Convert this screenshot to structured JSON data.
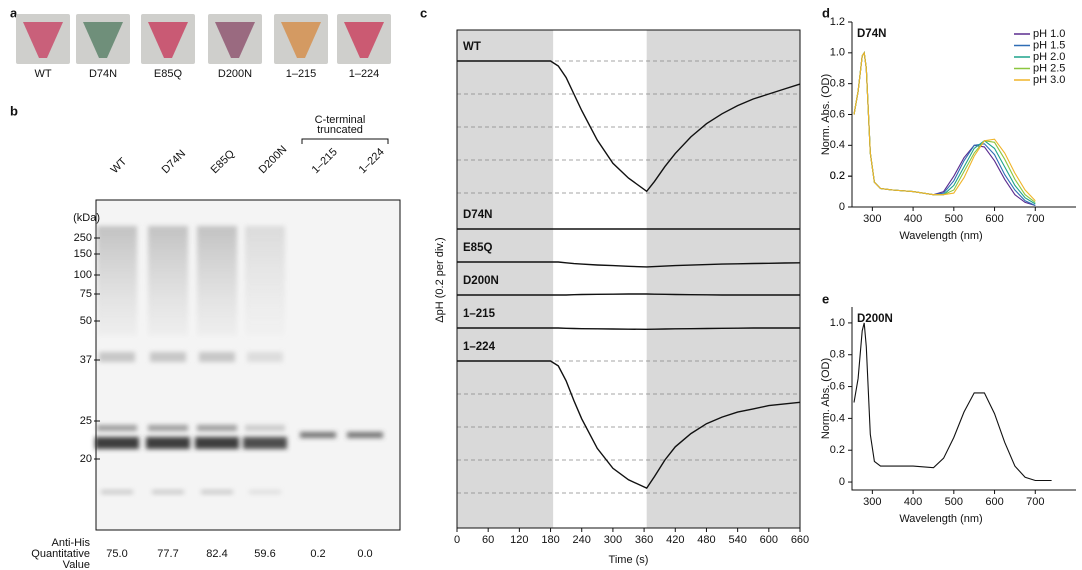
{
  "panel_a": {
    "label": "a",
    "samples": [
      "WT",
      "D74N",
      "E85Q",
      "D200N",
      "1–215",
      "1–224"
    ]
  },
  "panel_b": {
    "label": "b",
    "lanes": [
      "WT",
      "D74N",
      "E85Q",
      "D200N",
      "1–215",
      "1–224"
    ],
    "group_label": [
      "C-terminal",
      "truncated"
    ],
    "unit": "(kDa)",
    "markers": [
      "250",
      "150",
      "100",
      "75",
      "50",
      "37",
      "25",
      "20"
    ],
    "quant_label": [
      "Anti-His",
      "Quantitative",
      "Value"
    ],
    "quant_values": [
      "75.0",
      "77.7",
      "82.4",
      "59.6",
      "0.2",
      "0.0"
    ]
  },
  "chart_data": [
    {
      "type": "line",
      "panel_label": "c",
      "xlabel": "Time (s)",
      "ylabel": "ΔpH (0.2 per div.)",
      "xlim": [
        0,
        660
      ],
      "xticks": [
        0,
        60,
        120,
        180,
        240,
        300,
        360,
        420,
        480,
        540,
        600,
        660
      ],
      "dark_periods": [
        [
          0,
          185
        ],
        [
          365,
          660
        ]
      ],
      "grid_lines": [
        0,
        -0.2,
        -0.4,
        -0.6,
        -0.8
      ],
      "x": [
        0,
        60,
        120,
        180,
        195,
        210,
        225,
        240,
        270,
        300,
        330,
        365,
        380,
        400,
        420,
        450,
        480,
        510,
        540,
        570,
        600,
        630,
        660
      ],
      "series": [
        {
          "name": "WT",
          "color": "#111111",
          "grid": true,
          "values": [
            0,
            0,
            0,
            0,
            -0.03,
            -0.1,
            -0.2,
            -0.3,
            -0.48,
            -0.62,
            -0.71,
            -0.79,
            -0.73,
            -0.64,
            -0.56,
            -0.46,
            -0.38,
            -0.32,
            -0.27,
            -0.23,
            -0.2,
            -0.17,
            -0.14
          ]
        },
        {
          "name": "D74N",
          "color": "#111111",
          "grid": false,
          "values": [
            0,
            0,
            0,
            0,
            0,
            0,
            0,
            0,
            0,
            0,
            0,
            0,
            0,
            0,
            0,
            0,
            0,
            0,
            0,
            0,
            0,
            0,
            0
          ]
        },
        {
          "name": "E85Q",
          "color": "#111111",
          "grid": false,
          "values": [
            0,
            0,
            0,
            0,
            0,
            -0.005,
            -0.01,
            -0.013,
            -0.018,
            -0.022,
            -0.026,
            -0.03,
            -0.028,
            -0.025,
            -0.022,
            -0.019,
            -0.016,
            -0.013,
            -0.011,
            -0.009,
            -0.008,
            -0.006,
            -0.005
          ]
        },
        {
          "name": "D200N",
          "color": "#111111",
          "grid": false,
          "values": [
            0,
            0,
            0,
            0,
            0,
            0,
            0.002,
            0.003,
            0.004,
            0.005,
            0.006,
            0.006,
            0.005,
            0.004,
            0.003,
            0.002,
            0.001,
            0,
            0,
            0,
            0,
            0,
            0
          ]
        },
        {
          "name": "1–215",
          "color": "#111111",
          "grid": false,
          "values": [
            0,
            0,
            0,
            0,
            0,
            -0.002,
            -0.003,
            -0.004,
            -0.005,
            -0.006,
            -0.007,
            -0.008,
            -0.007,
            -0.006,
            -0.005,
            -0.004,
            -0.003,
            -0.002,
            -0.001,
            0,
            0,
            0,
            0
          ]
        },
        {
          "name": "1–224",
          "color": "#111111",
          "grid": true,
          "values": [
            0,
            0,
            0,
            0,
            -0.03,
            -0.12,
            -0.24,
            -0.35,
            -0.53,
            -0.65,
            -0.72,
            -0.77,
            -0.7,
            -0.6,
            -0.52,
            -0.44,
            -0.38,
            -0.34,
            -0.31,
            -0.29,
            -0.27,
            -0.26,
            -0.25
          ]
        }
      ]
    },
    {
      "type": "line",
      "panel_label": "d",
      "title": "D74N",
      "xlabel": "Wavelength (nm)",
      "ylabel": "Norm. Abs. (OD)",
      "xlim": [
        250,
        800
      ],
      "xticks": [
        300,
        400,
        500,
        600,
        700
      ],
      "ylim": [
        0,
        1.2
      ],
      "yticks": [
        0,
        0.2,
        0.4,
        0.6,
        0.8,
        {
          "value": 1,
          "label": "1.0"
        },
        0.2,
        {
          "value": 1.2,
          "label": "1.2"
        }
      ],
      "legend": "top-right",
      "x": [
        255,
        265,
        275,
        280,
        285,
        295,
        305,
        320,
        350,
        400,
        450,
        475,
        500,
        525,
        550,
        575,
        600,
        625,
        650,
        675,
        700
      ],
      "series": [
        {
          "name": "pH 1.0",
          "color": "#5b2c8f",
          "values": [
            0.6,
            0.75,
            0.98,
            1.0,
            0.9,
            0.35,
            0.16,
            0.12,
            0.11,
            0.1,
            0.08,
            0.1,
            0.2,
            0.32,
            0.4,
            0.39,
            0.3,
            0.18,
            0.08,
            0.03,
            0.01
          ]
        },
        {
          "name": "pH 1.5",
          "color": "#2f6db5",
          "values": [
            0.6,
            0.75,
            0.98,
            1.0,
            0.9,
            0.35,
            0.16,
            0.12,
            0.11,
            0.1,
            0.08,
            0.09,
            0.17,
            0.3,
            0.4,
            0.41,
            0.34,
            0.21,
            0.11,
            0.04,
            0.01
          ]
        },
        {
          "name": "pH 2.0",
          "color": "#1ea38a",
          "values": [
            0.6,
            0.75,
            0.98,
            1.0,
            0.9,
            0.35,
            0.16,
            0.12,
            0.11,
            0.1,
            0.08,
            0.08,
            0.14,
            0.26,
            0.38,
            0.43,
            0.38,
            0.26,
            0.14,
            0.06,
            0.02
          ]
        },
        {
          "name": "pH 2.5",
          "color": "#8cc63f",
          "values": [
            0.6,
            0.75,
            0.98,
            1.0,
            0.9,
            0.35,
            0.16,
            0.12,
            0.11,
            0.1,
            0.08,
            0.08,
            0.11,
            0.23,
            0.35,
            0.43,
            0.42,
            0.31,
            0.18,
            0.08,
            0.03
          ]
        },
        {
          "name": "pH 3.0",
          "color": "#f0b429",
          "values": [
            0.6,
            0.75,
            0.98,
            1.0,
            0.9,
            0.35,
            0.16,
            0.12,
            0.11,
            0.1,
            0.08,
            0.08,
            0.09,
            0.19,
            0.33,
            0.43,
            0.44,
            0.35,
            0.22,
            0.11,
            0.04
          ]
        }
      ]
    },
    {
      "type": "line",
      "panel_label": "e",
      "title": "D200N",
      "xlabel": "Wavelength (nm)",
      "ylabel": "Norm. Abs. (OD)",
      "xlim": [
        250,
        800
      ],
      "xticks": [
        300,
        400,
        500,
        600,
        700
      ],
      "ylim": [
        -0.05,
        1.1
      ],
      "yticks": [
        0,
        0.2,
        0.4,
        0.6,
        0.8,
        {
          "value": 1,
          "label": "1.0"
        }
      ],
      "x": [
        255,
        265,
        275,
        280,
        285,
        295,
        305,
        320,
        350,
        400,
        450,
        475,
        500,
        525,
        550,
        575,
        600,
        625,
        650,
        675,
        700,
        740
      ],
      "series": [
        {
          "name": "D200N",
          "color": "#111111",
          "values": [
            0.5,
            0.65,
            0.95,
            1.0,
            0.85,
            0.3,
            0.13,
            0.1,
            0.1,
            0.1,
            0.09,
            0.15,
            0.28,
            0.44,
            0.56,
            0.56,
            0.43,
            0.25,
            0.1,
            0.03,
            0.01,
            0.01
          ]
        }
      ]
    }
  ]
}
